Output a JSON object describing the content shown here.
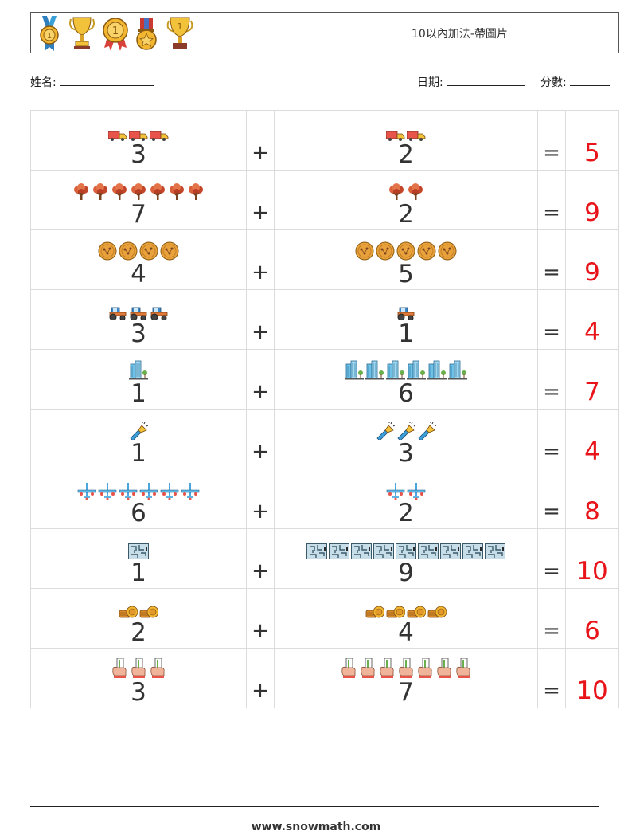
{
  "header": {
    "title": "10以內加法-帶圖片",
    "icons": [
      "medal-icon",
      "trophy-icon",
      "ribbon-medal-icon",
      "star-medal-icon",
      "cup-icon"
    ]
  },
  "info": {
    "name_label": "姓名:",
    "date_label": "日期:",
    "score_label": "分數:"
  },
  "problems": [
    {
      "a": 3,
      "op": "+",
      "b": 2,
      "eq": "=",
      "answer": "5",
      "icon": "truck-icon"
    },
    {
      "a": 7,
      "op": "+",
      "b": 2,
      "eq": "=",
      "answer": "9",
      "icon": "tree-icon"
    },
    {
      "a": 4,
      "op": "+",
      "b": 5,
      "eq": "=",
      "answer": "9",
      "icon": "cookie-icon"
    },
    {
      "a": 3,
      "op": "+",
      "b": 1,
      "eq": "=",
      "answer": "4",
      "icon": "tractor-icon"
    },
    {
      "a": 1,
      "op": "+",
      "b": 6,
      "eq": "=",
      "answer": "7",
      "icon": "skyscraper-icon"
    },
    {
      "a": 1,
      "op": "+",
      "b": 3,
      "eq": "=",
      "answer": "4",
      "icon": "flashlight-icon"
    },
    {
      "a": 6,
      "op": "+",
      "b": 2,
      "eq": "=",
      "answer": "8",
      "icon": "airplane-icon"
    },
    {
      "a": 1,
      "op": "+",
      "b": 9,
      "eq": "=",
      "answer": "10",
      "icon": "maze-icon"
    },
    {
      "a": 2,
      "op": "+",
      "b": 4,
      "eq": "=",
      "answer": "6",
      "icon": "coins-icon"
    },
    {
      "a": 3,
      "op": "+",
      "b": 7,
      "eq": "=",
      "answer": "10",
      "icon": "hand-card-icon"
    }
  ],
  "footer": {
    "site": "www.snowmath.com"
  },
  "colors": {
    "answer": "#e8141a",
    "border": "#dcdcdc"
  }
}
